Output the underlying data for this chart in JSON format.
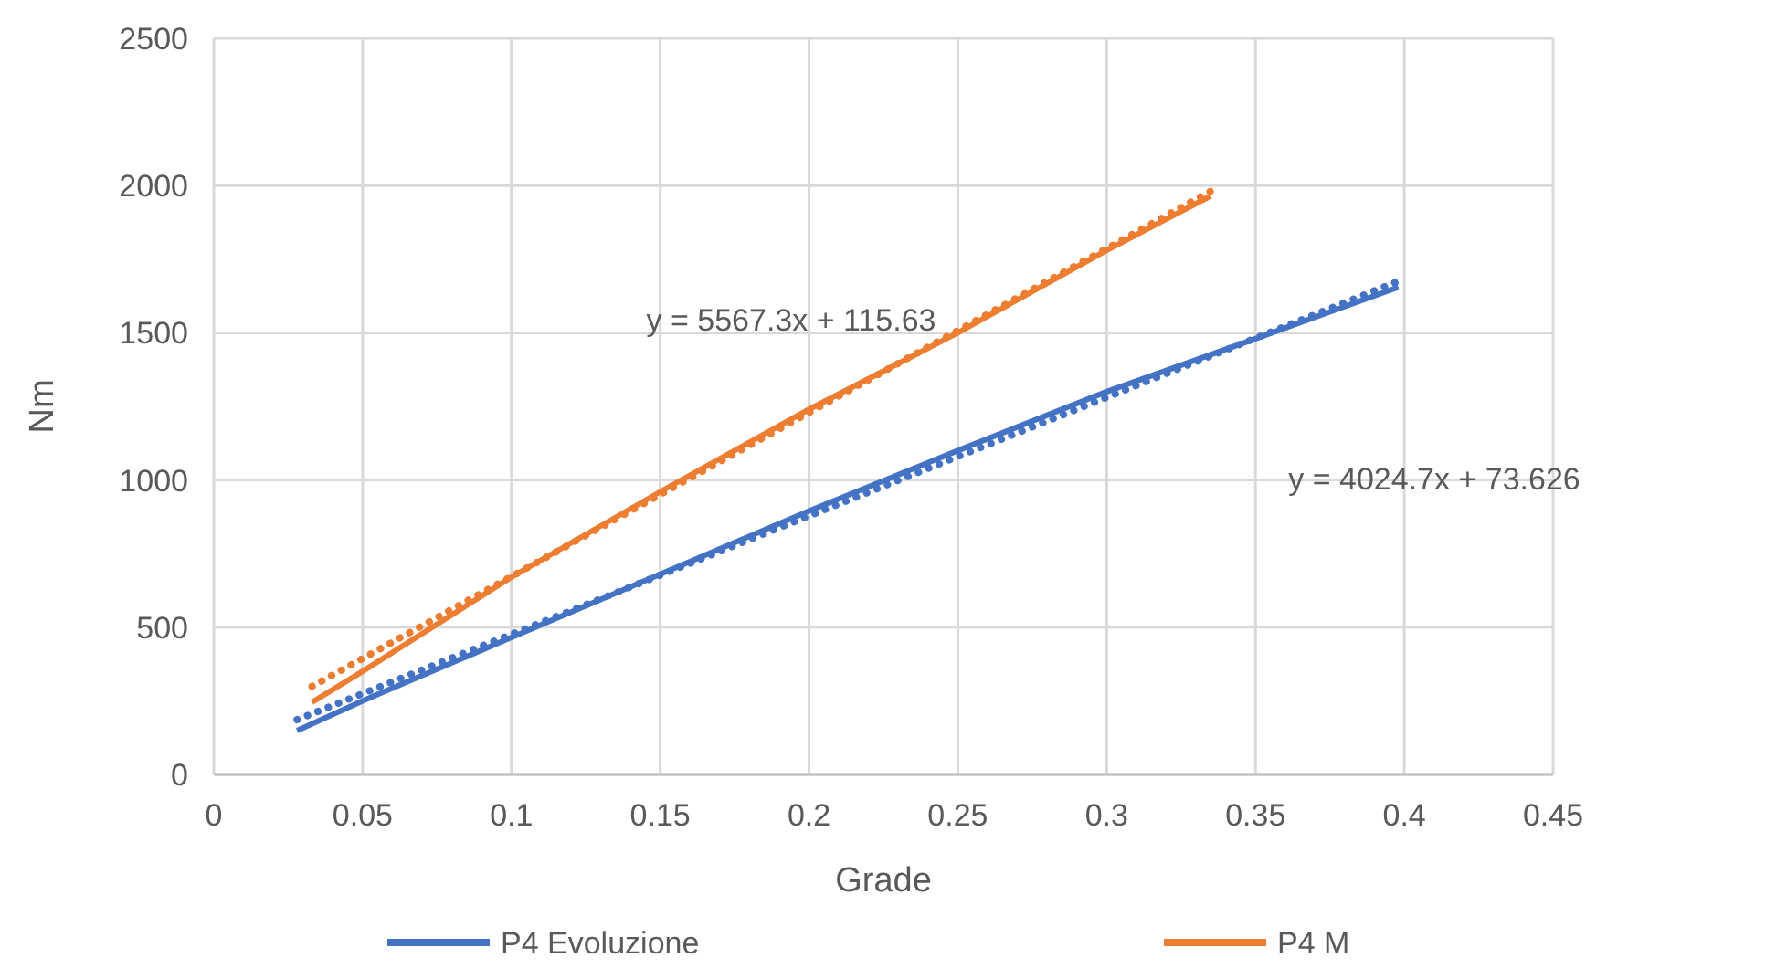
{
  "chart_data": {
    "type": "line",
    "xlabel": "Grade",
    "ylabel": "Nm",
    "xlim": [
      0,
      0.45
    ],
    "ylim": [
      0,
      2500
    ],
    "xticks": [
      0,
      0.05,
      0.1,
      0.15,
      0.2,
      0.25,
      0.3,
      0.35,
      0.4,
      0.45
    ],
    "yticks": [
      0,
      500,
      1000,
      1500,
      2000,
      2500
    ],
    "grid": true,
    "legend": "bottom",
    "series": [
      {
        "name": "P4 Evoluzione",
        "color": "#4472c4",
        "line_style": "solid",
        "x": [
          0.028,
          0.05,
          0.1,
          0.15,
          0.2,
          0.25,
          0.3,
          0.35,
          0.398
        ],
        "values": [
          149,
          250,
          465,
          680,
          895,
          1100,
          1300,
          1480,
          1655
        ]
      },
      {
        "name": "P4 M",
        "color": "#ed7d31",
        "line_style": "solid",
        "x": [
          0.033,
          0.05,
          0.1,
          0.15,
          0.2,
          0.25,
          0.3,
          0.335
        ],
        "values": [
          245,
          350,
          670,
          960,
          1240,
          1500,
          1780,
          1965
        ]
      },
      {
        "color": "#4472c4",
        "line_style": "dotted",
        "x": [
          0.028,
          0.398
        ],
        "values": [
          186,
          1675
        ]
      },
      {
        "color": "#ed7d31",
        "line_style": "dotted",
        "x": [
          0.033,
          0.335
        ],
        "values": [
          299,
          1981
        ]
      }
    ],
    "annotations": [
      "y = 5567.3x + 115.63",
      "y = 4024.7x + 73.626"
    ]
  }
}
